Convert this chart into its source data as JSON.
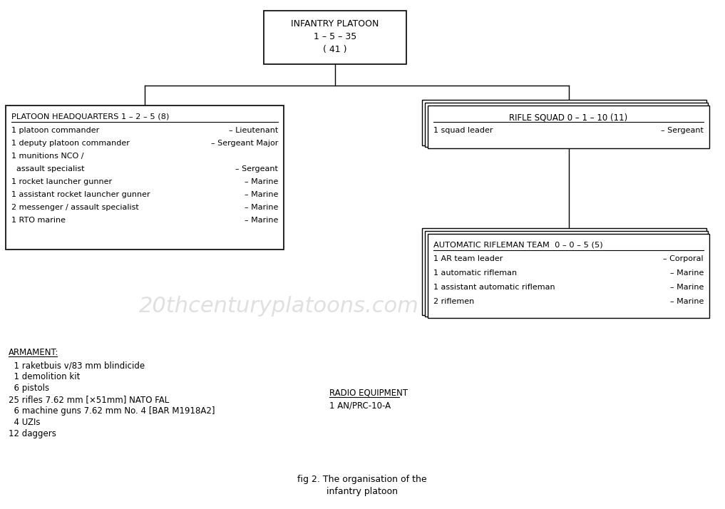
{
  "bg_color": "#ffffff",
  "line_color": "#000000",
  "text_color": "#000000",
  "watermark": "20thcenturyplatoons.com",
  "watermark_color": "#cccccc",
  "top_box": {
    "title": "INFANTRY PLATOON",
    "line2": "1 – 5 – 35",
    "line3": "( 41 )"
  },
  "hq_box": {
    "title": "PLATOON HEADQUARTERS 1 – 2 – 5 (8)",
    "rows": [
      [
        "1 platoon commander",
        "– Lieutenant"
      ],
      [
        "1 deputy platoon commander",
        "– Sergeant Major"
      ],
      [
        "1 munitions NCO /",
        ""
      ],
      [
        "  assault specialist",
        "– Sergeant"
      ],
      [
        "1 rocket launcher gunner",
        "– Marine"
      ],
      [
        "1 assistant rocket launcher gunner",
        "– Marine"
      ],
      [
        "2 messenger / assault specialist",
        "– Marine"
      ],
      [
        "1 RTO marine",
        "– Marine"
      ]
    ]
  },
  "rifle_box": {
    "title": "RIFLE SQUAD 0 – 1 – 10 (11)",
    "rows": [
      [
        "1 squad leader",
        "– Sergeant"
      ]
    ]
  },
  "ar_box": {
    "title": "AUTOMATIC RIFLEMAN TEAM  0 – 0 – 5 (5)",
    "rows": [
      [
        "1 AR team leader",
        "– Corporal"
      ],
      [
        "1 automatic rifleman",
        "– Marine"
      ],
      [
        "1 assistant automatic rifleman",
        "– Marine"
      ],
      [
        "2 riflemen",
        "– Marine"
      ]
    ]
  },
  "armament_title": "ARMAMENT:",
  "armament_lines": [
    "  1 raketbuis v/83 mm blindicide",
    "  1 demolition kit",
    "  6 pistols",
    "25 rifles 7.62 mm [×51mm] NATO FAL",
    "  6 machine guns 7.62 mm No. 4 [BAR M1918A2]",
    "  4 UZIs",
    "12 daggers"
  ],
  "radio_title": "RADIO EQUIPMENT",
  "radio_lines": [
    "1 AN/PRC-10-A"
  ],
  "caption_line1": "fig 2. The organisation of the",
  "caption_line2": "infantry platoon"
}
